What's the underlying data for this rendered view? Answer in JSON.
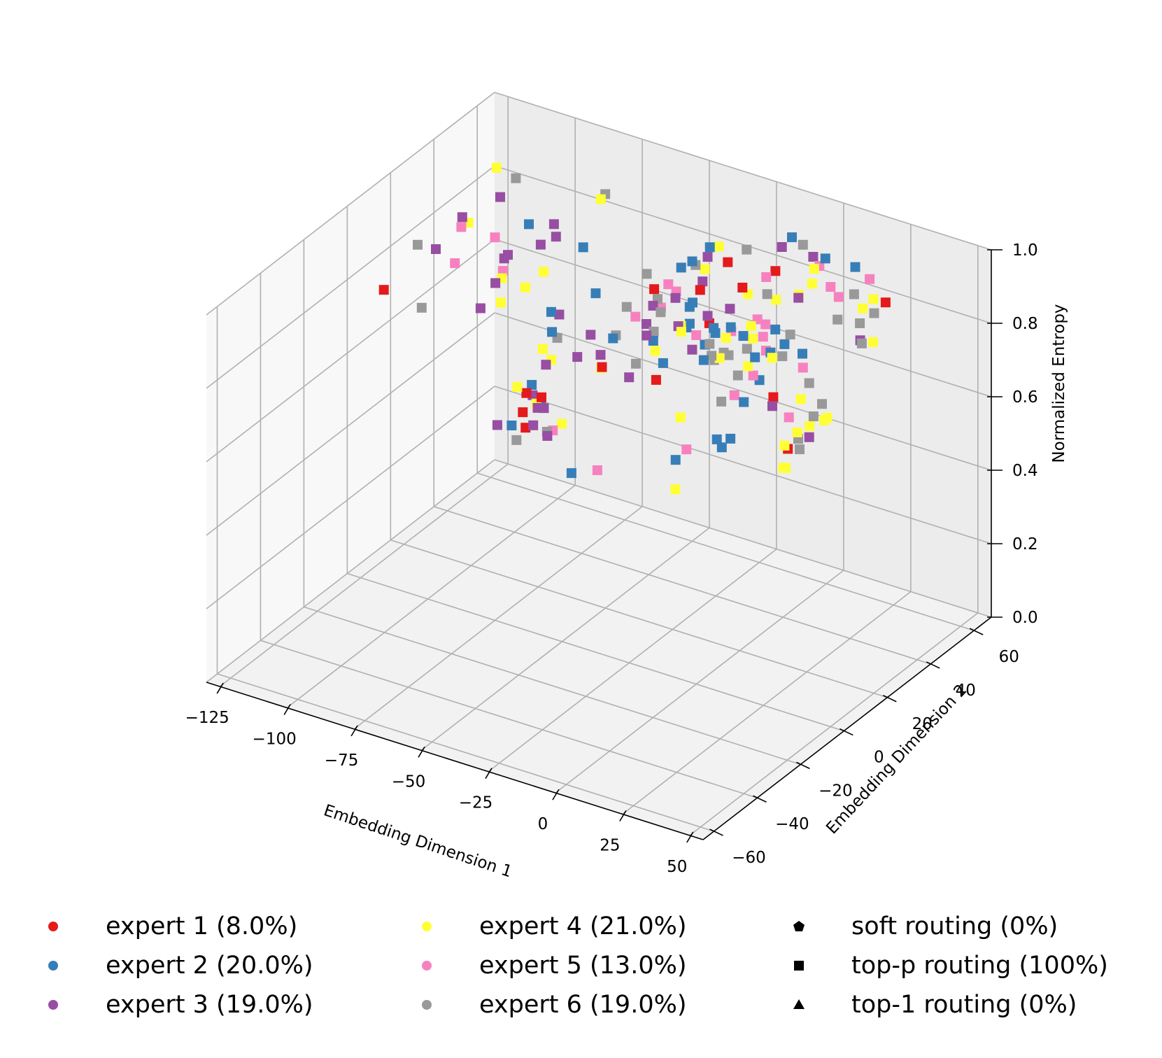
{
  "chart_data": {
    "type": "scatter",
    "projection": "3d",
    "xlabel": "Embedding Dimension 1",
    "ylabel": "Embedding Dimension 2",
    "zlabel": "Normalized Entropy",
    "xlim": [
      -130,
      55
    ],
    "ylim": [
      -65,
      68
    ],
    "zlim": [
      0.0,
      1.0
    ],
    "xticks": [
      "−125",
      "−100",
      "−75",
      "−50",
      "−25",
      "0",
      "25",
      "50"
    ],
    "yticks": [
      "−60",
      "−40",
      "−20",
      "0",
      "20",
      "40",
      "60"
    ],
    "zticks": [
      "0.0",
      "0.2",
      "0.4",
      "0.6",
      "0.8",
      "1.0"
    ],
    "xtick_values": [
      -125,
      -100,
      -75,
      -50,
      -25,
      0,
      25,
      50
    ],
    "ytick_values": [
      -60,
      -40,
      -20,
      0,
      20,
      40,
      60
    ],
    "ztick_values": [
      0.0,
      0.2,
      0.4,
      0.6,
      0.8,
      1.0
    ],
    "marker": "square",
    "series": [
      {
        "name": "expert 1 (8.0%)",
        "color": "#e41a1c",
        "count": 16
      },
      {
        "name": "expert 2 (20.0%)",
        "color": "#377eb8",
        "count": 40
      },
      {
        "name": "expert 3 (19.0%)",
        "color": "#984ea3",
        "count": 38
      },
      {
        "name": "expert 4 (21.0%)",
        "color": "#ffff33",
        "count": 42
      },
      {
        "name": "expert 5 (13.0%)",
        "color": "#f781bf",
        "count": 26
      },
      {
        "name": "expert 6 (19.0%)",
        "color": "#999999",
        "count": 38
      }
    ],
    "point_cloud": "spiral band of ~200 points over x in [-125,45], y in [-45,60], normalized entropy 0.55 to 1.0; all top-p routed (square markers)",
    "routing_legend": [
      {
        "name": "soft routing (0%)",
        "marker": "pentagon"
      },
      {
        "name": "top-p routing (100%)",
        "marker": "square"
      },
      {
        "name": "top-1 routing (0%)",
        "marker": "triangle"
      }
    ]
  }
}
